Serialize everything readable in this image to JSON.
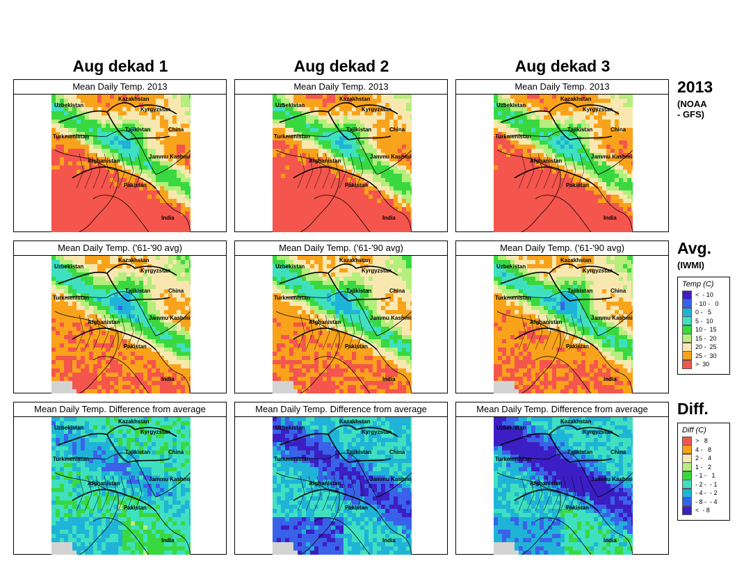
{
  "columns": [
    "Aug dekad 1",
    "Aug dekad 2",
    "Aug dekad 3"
  ],
  "rows": [
    {
      "title": "Mean Daily Temp. 2013",
      "side_big": "2013",
      "side_small": [
        "(NOAA",
        "- GFS)"
      ],
      "kind": "temp",
      "variant": "2013"
    },
    {
      "title": "Mean Daily Temp. ('61-'90 avg)",
      "side_big": "Avg.",
      "side_small": [
        "(IWMI)"
      ],
      "kind": "temp",
      "variant": "avg"
    },
    {
      "title": "Mean Daily Temp. Difference from average",
      "side_big": "Diff.",
      "side_small": [],
      "kind": "diff",
      "variant": "diff"
    }
  ],
  "map_labels": {
    "kazakhstan": "Kazakhstan",
    "uzbekistan": "Uzbekistan",
    "kyrgyzstan": "Kyrgyzstan",
    "tajikistan": "Tajikistan",
    "turkmenistan": "Turkmenistan",
    "china": "China",
    "jammu_kashmir": "Jammu Kashmir",
    "afghanistan": "Afghanistan",
    "pakistan": "Pakistan",
    "india": "India"
  },
  "temp_legend": {
    "title": "Temp (C)",
    "items": [
      {
        "label": "<  - 10",
        "color": "#3b1fc4"
      },
      {
        "label": "- 10 -   0",
        "color": "#3a62e8"
      },
      {
        "label": "0 -   5",
        "color": "#20b3d8"
      },
      {
        "label": "5 -  10",
        "color": "#3fe0c0"
      },
      {
        "label": "10 -  15",
        "color": "#3ad840"
      },
      {
        "label": "15 -  20",
        "color": "#b4ee7c"
      },
      {
        "label": "20 -  25",
        "color": "#f8e8b0"
      },
      {
        "label": "25 -  30",
        "color": "#f9a21b"
      },
      {
        "label": ">  30",
        "color": "#f4554c"
      }
    ]
  },
  "diff_legend": {
    "title": "Diff (C)",
    "items": [
      {
        "label": ">   8",
        "color": "#f4554c"
      },
      {
        "label": "4 -   8",
        "color": "#f9a21b"
      },
      {
        "label": "2 -   4",
        "color": "#f8e8b0"
      },
      {
        "label": "1 -   2",
        "color": "#b4ee7c"
      },
      {
        "label": "- 1 -   1",
        "color": "#3ad840"
      },
      {
        "label": "- 2 -  - 1",
        "color": "#3fe0c0"
      },
      {
        "label": "- 4 -  - 2",
        "color": "#20b3d8"
      },
      {
        "label": "- 8 -  - 4",
        "color": "#3a62e8"
      },
      {
        "label": "<  - 8",
        "color": "#3b1fc4"
      }
    ]
  }
}
